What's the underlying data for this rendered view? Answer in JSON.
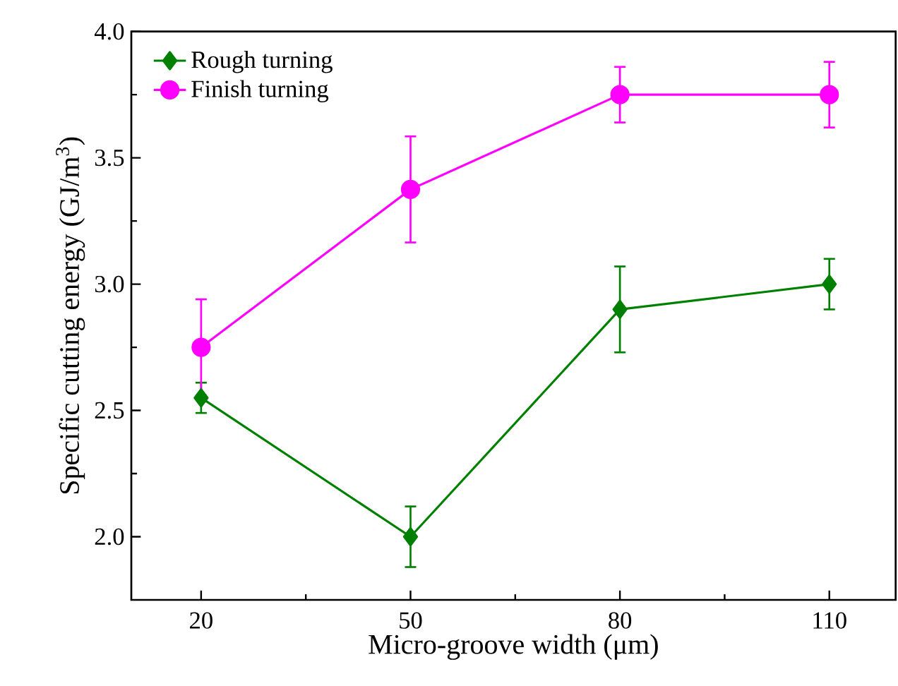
{
  "chart_data": {
    "type": "line",
    "xlabel": "Micro-groove width (μm)",
    "ylabel": "Specific cutting energy (GJ/m$^{3}$)",
    "x": [
      20,
      50,
      80,
      110
    ],
    "series": [
      {
        "name": "Rough turning",
        "color": "#008000",
        "marker": "diamond",
        "values": [
          2.55,
          2.0,
          2.9,
          3.0
        ],
        "errors": [
          0.06,
          0.12,
          0.17,
          0.1
        ]
      },
      {
        "name": "Finish turning",
        "color": "#ff00ff",
        "marker": "circle",
        "values": [
          2.75,
          3.375,
          3.75,
          3.75
        ],
        "errors": [
          0.19,
          0.21,
          0.11,
          0.13
        ]
      }
    ],
    "xlim": [
      10,
      119.5
    ],
    "ylim": [
      1.75,
      4.0
    ],
    "xticks": [
      20,
      50,
      80,
      110
    ],
    "yticks": [
      {
        "value": 2,
        "label": "2.0"
      },
      {
        "value": 2.5,
        "label": "2.5"
      },
      {
        "value": 3,
        "label": "3.0"
      },
      {
        "value": 3.5,
        "label": "3.5"
      },
      {
        "value": 4,
        "label": "4.0"
      }
    ],
    "legend": "top left",
    "grid": false,
    "line_style": "solid"
  }
}
